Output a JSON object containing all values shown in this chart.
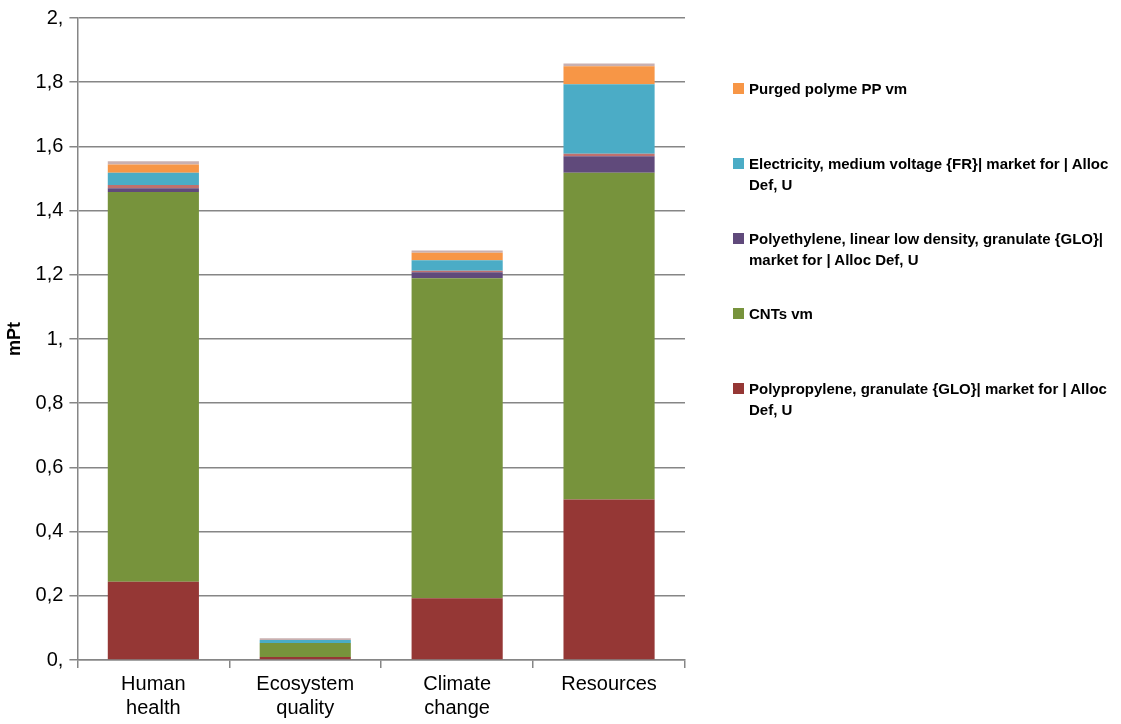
{
  "chart_data": {
    "type": "bar",
    "stacked": true,
    "ylabel": "mPt",
    "categories": [
      "Human health",
      "Ecosystem quality",
      "Climate change",
      "Resources"
    ],
    "series": [
      {
        "name": "Polypropylene, granulate {GLO}| market for | Alloc Def, U",
        "color": "#953735",
        "values": [
          0.244,
          0.009,
          0.192,
          0.5
        ]
      },
      {
        "name": "CNTs vm",
        "color": "#77933c",
        "values": [
          1.214,
          0.044,
          0.997,
          1.018
        ]
      },
      {
        "name": "Polyethylene, linear low density, granulate {GLO}| market for | Alloc Def, U",
        "color": "#604a7b",
        "values": [
          0.012,
          0,
          0.019,
          0.051
        ]
      },
      {
        "color": "#c0706e",
        "values": [
          0.01,
          0,
          0.005,
          0.008
        ]
      },
      {
        "name": "Electricity, medium voltage {FR}| market for | Alloc Def, U",
        "color": "#4bacc6",
        "values": [
          0.038,
          0.009,
          0.032,
          0.217
        ]
      },
      {
        "name": "Purged polyme PP vm",
        "color": "#f79646",
        "values": [
          0.026,
          0,
          0.024,
          0.056
        ]
      },
      {
        "color": "#c9b0b0",
        "values": [
          0.01,
          0.006,
          0.007,
          0.008
        ]
      }
    ],
    "ylim": [
      0,
      2
    ],
    "yticks": [
      {
        "value": 0,
        "label": "0,"
      },
      {
        "value": 0.2,
        "label": "0,2"
      },
      {
        "value": 0.4,
        "label": "0,4"
      },
      {
        "value": 0.6,
        "label": "0,6"
      },
      {
        "value": 0.8,
        "label": "0,8"
      },
      {
        "value": 1,
        "label": "1,"
      },
      {
        "value": 1.2,
        "label": "1,2"
      },
      {
        "value": 1.4,
        "label": "1,4"
      },
      {
        "value": 1.6,
        "label": "1,6"
      },
      {
        "value": 1.8,
        "label": "1,8"
      },
      {
        "value": 2,
        "label": "2,"
      }
    ],
    "grid": "y",
    "legend": "right"
  }
}
